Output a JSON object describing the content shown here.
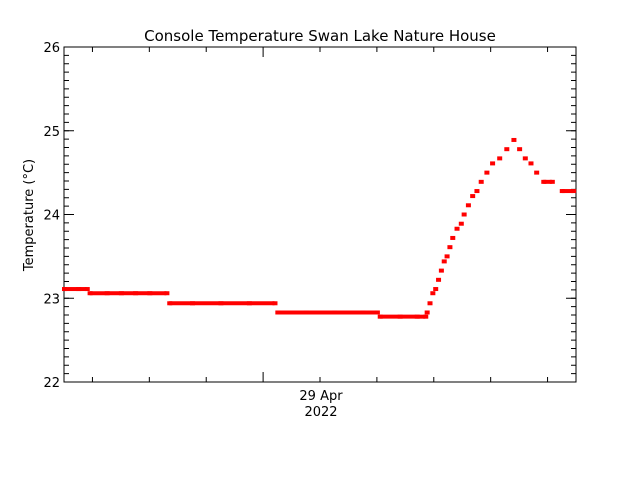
{
  "chart_data": {
    "type": "scatter",
    "title": "Console Temperature Swan Lake Nature House",
    "ylabel": "Temperature (°C)",
    "xlabel": "",
    "ylim": [
      22,
      26
    ],
    "yticks": [
      "22",
      "23",
      "24",
      "25",
      "26"
    ],
    "x_range_hours": [
      -7,
      11
    ],
    "x_tick_label": {
      "x_hours": 0,
      "line1": "29 Apr",
      "line2": "2022"
    },
    "series": [
      {
        "color": "#ff0000",
        "points": [
          [
            -7.0,
            23.11
          ],
          [
            -6.5,
            23.11
          ],
          [
            -6.2,
            23.11
          ],
          [
            -6.1,
            23.06
          ],
          [
            -5.5,
            23.06
          ],
          [
            -5.0,
            23.06
          ],
          [
            -4.5,
            23.06
          ],
          [
            -4.0,
            23.06
          ],
          [
            -3.4,
            23.06
          ],
          [
            -3.3,
            22.94
          ],
          [
            -2.5,
            22.94
          ],
          [
            -1.5,
            22.94
          ],
          [
            -0.5,
            22.94
          ],
          [
            0.4,
            22.94
          ],
          [
            0.5,
            22.83
          ],
          [
            1.5,
            22.83
          ],
          [
            2.5,
            22.83
          ],
          [
            3.5,
            22.83
          ],
          [
            4.0,
            22.83
          ],
          [
            4.1,
            22.78
          ],
          [
            4.8,
            22.78
          ],
          [
            5.4,
            22.78
          ],
          [
            5.7,
            22.78
          ],
          [
            5.75,
            22.83
          ],
          [
            5.85,
            22.94
          ],
          [
            5.95,
            23.06
          ],
          [
            6.05,
            23.11
          ],
          [
            6.15,
            23.22
          ],
          [
            6.25,
            23.33
          ],
          [
            6.35,
            23.44
          ],
          [
            6.45,
            23.5
          ],
          [
            6.55,
            23.61
          ],
          [
            6.65,
            23.72
          ],
          [
            6.8,
            23.83
          ],
          [
            6.95,
            23.89
          ],
          [
            7.05,
            24.0
          ],
          [
            7.2,
            24.11
          ],
          [
            7.35,
            24.22
          ],
          [
            7.5,
            24.28
          ],
          [
            7.65,
            24.39
          ],
          [
            7.85,
            24.5
          ],
          [
            8.05,
            24.61
          ],
          [
            8.3,
            24.67
          ],
          [
            8.55,
            24.78
          ],
          [
            8.8,
            24.89
          ],
          [
            9.0,
            24.78
          ],
          [
            9.2,
            24.67
          ],
          [
            9.4,
            24.61
          ],
          [
            9.6,
            24.5
          ],
          [
            9.85,
            24.39
          ],
          [
            10.15,
            24.39
          ],
          [
            10.5,
            24.28
          ],
          [
            10.9,
            24.28
          ]
        ]
      }
    ]
  }
}
